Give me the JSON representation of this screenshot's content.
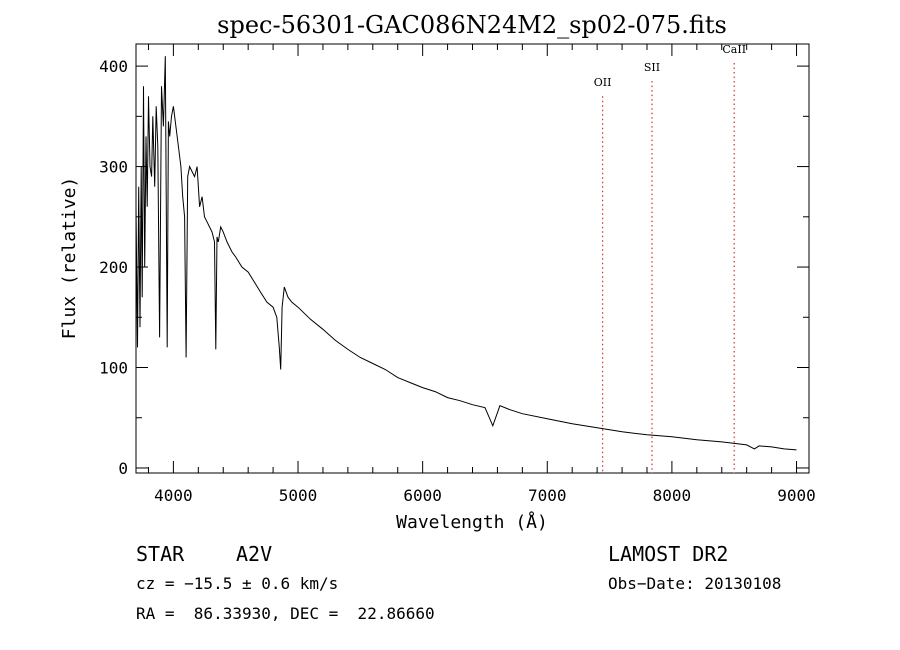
{
  "chart_data": {
    "type": "line",
    "title": "spec-56301-GAC086N24M2_sp02-075.fits",
    "xlabel": "Wavelength (Å)",
    "ylabel": "Flux (relative)",
    "xlim": [
      3700,
      9100
    ],
    "ylim": [
      -5,
      422
    ],
    "xticks": [
      4000,
      5000,
      6000,
      7000,
      8000,
      9000
    ],
    "yticks": [
      0,
      100,
      200,
      300,
      400
    ],
    "grid": false,
    "series": [
      {
        "x": [
          3700,
          3712,
          3722,
          3732,
          3742,
          3750,
          3760,
          3770,
          3780,
          3790,
          3800,
          3812,
          3825,
          3835,
          3850,
          3862,
          3875,
          3889,
          3905,
          3920,
          3935,
          3950,
          3960,
          3970,
          3985,
          4000,
          4020,
          4040,
          4060,
          4075,
          4090,
          4102,
          4115,
          4130,
          4150,
          4170,
          4190,
          4210,
          4230,
          4250,
          4270,
          4290,
          4310,
          4330,
          4340,
          4350,
          4360,
          4380,
          4400,
          4430,
          4470,
          4500,
          4550,
          4600,
          4650,
          4700,
          4750,
          4800,
          4830,
          4850,
          4861,
          4872,
          4890,
          4920,
          4950,
          5000,
          5100,
          5200,
          5300,
          5400,
          5500,
          5600,
          5700,
          5800,
          5900,
          6000,
          6100,
          6200,
          6300,
          6400,
          6500,
          6563,
          6620,
          6700,
          6800,
          7000,
          7200,
          7400,
          7600,
          7800,
          8000,
          8200,
          8400,
          8600,
          8662,
          8700,
          8800,
          8900,
          9000
        ],
        "y": [
          260,
          120,
          280,
          140,
          300,
          170,
          380,
          200,
          330,
          260,
          370,
          300,
          290,
          350,
          280,
          360,
          320,
          130,
          380,
          340,
          410,
          120,
          345,
          330,
          350,
          360,
          340,
          320,
          300,
          270,
          250,
          110,
          290,
          300,
          295,
          290,
          300,
          260,
          270,
          250,
          245,
          240,
          235,
          225,
          118,
          230,
          225,
          240,
          235,
          225,
          215,
          210,
          200,
          195,
          185,
          175,
          165,
          160,
          150,
          120,
          98,
          160,
          180,
          170,
          165,
          160,
          148,
          138,
          127,
          118,
          110,
          104,
          98,
          90,
          85,
          80,
          76,
          70,
          67,
          63,
          60,
          42,
          62,
          58,
          54,
          49,
          44,
          40,
          36,
          33,
          31,
          28,
          26,
          23,
          19,
          22,
          21,
          19,
          18
        ]
      }
    ],
    "annotations": [
      {
        "label": "OII",
        "x": 7444,
        "y": 378
      },
      {
        "label": "SII",
        "x": 7840,
        "y": 393
      },
      {
        "label": "CaII",
        "x": 8500,
        "y": 411
      }
    ]
  },
  "footer": {
    "object_type": "STAR",
    "subclass": "A2V",
    "survey": "LAMOST DR2",
    "cz": "cz = −15.5 ± 0.6 km/s",
    "obs_date": "Obs−Date: 20130108",
    "coords": "RA =  86.33930, DEC =  22.86660"
  }
}
